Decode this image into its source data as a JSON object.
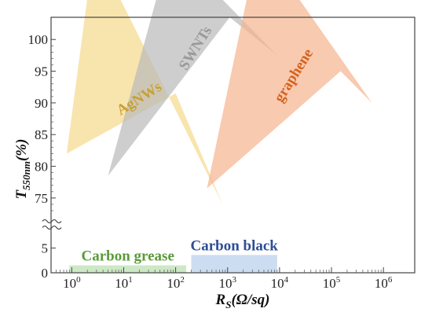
{
  "chart_data": {
    "type": "area",
    "xlabel": {
      "symbol": "R",
      "subscript": "S",
      "unit": "(Ω/sq)"
    },
    "ylabel": {
      "symbol": "T",
      "subscript": "550nm",
      "unit": "(%)"
    },
    "x_scale": "log",
    "xlim": [
      0.4,
      4000000
    ],
    "x_ticks": [
      {
        "base": "10",
        "exp": "0"
      },
      {
        "base": "10",
        "exp": "1"
      },
      {
        "base": "10",
        "exp": "2"
      },
      {
        "base": "10",
        "exp": "3"
      },
      {
        "base": "10",
        "exp": "4"
      },
      {
        "base": "10",
        "exp": "5"
      },
      {
        "base": "10",
        "exp": "6"
      }
    ],
    "y_axis_break": true,
    "y_ticks_lower": [
      "0",
      "5"
    ],
    "y_ticks_upper": [
      "75",
      "80",
      "85",
      "90",
      "95",
      "100"
    ],
    "ylim_lower": [
      0,
      7
    ],
    "ylim_upper": [
      73,
      103.5
    ],
    "regions": [
      {
        "name": "AgNWs",
        "color": "#f5d98a",
        "label_color": "#c9a030",
        "label_rotation": -32,
        "polygon": [
          [
            0.8,
            82
          ],
          [
            2.7,
            66
          ],
          [
            800,
            74
          ],
          [
            100,
            91.5
          ]
        ]
      },
      {
        "name": "SWNTs",
        "color": "#b9b9b9",
        "label_color": "#999999",
        "label_rotation": -58,
        "polygon": [
          [
            5,
            78.5
          ],
          [
            80,
            66
          ],
          [
            9000,
            97.5
          ],
          [
            1100,
            103.5
          ]
        ]
      },
      {
        "name": "graphene",
        "color": "#f5b48f",
        "label_color": "#d5621e",
        "label_rotation": -58,
        "polygon": [
          [
            400,
            76.5
          ],
          [
            4000,
            67
          ],
          [
            600000,
            90
          ],
          [
            150000,
            95
          ]
        ]
      },
      {
        "name": "Carbon grease",
        "color": "#c8e6c0",
        "label_color": "#5a9a3a",
        "label_rotation": 0,
        "bar": {
          "x": [
            0.9,
            160
          ],
          "y": [
            0.0,
            1.5
          ]
        }
      },
      {
        "name": "Carbon black",
        "color": "#c6d8ef",
        "label_color": "#2e4e96",
        "label_rotation": 0,
        "bar": {
          "x": [
            200,
            9000
          ],
          "y": [
            0.0,
            3.6
          ]
        }
      }
    ]
  }
}
